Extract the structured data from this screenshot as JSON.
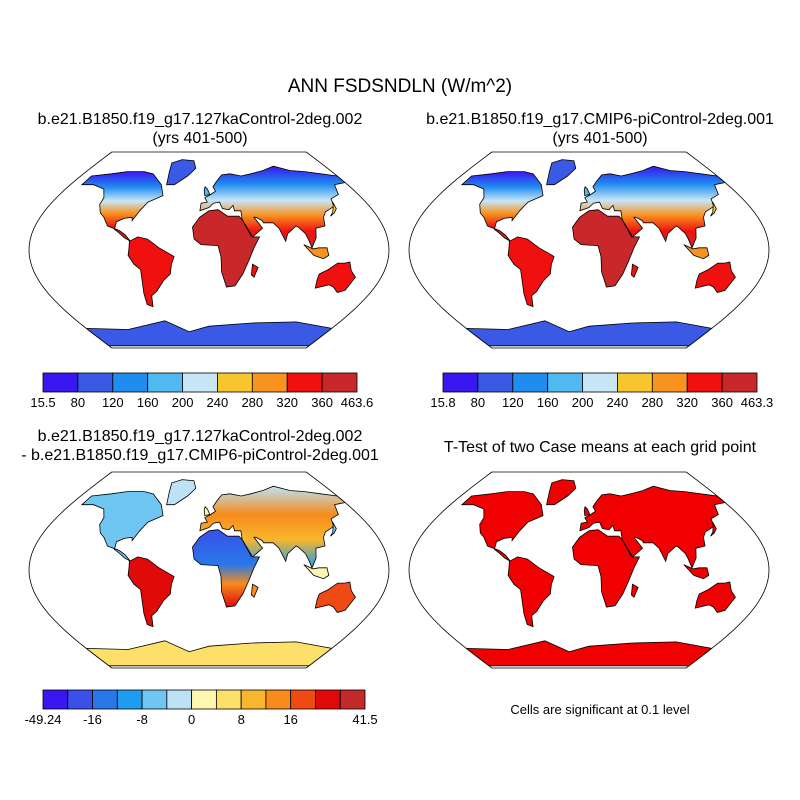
{
  "title": "ANN FSDSNDLN (W/m^2)",
  "panels": {
    "case1": {
      "line1": "b.e21.B1850.f19_g17.127kaControl-2deg.002",
      "line2": "(yrs 401-500)"
    },
    "case2": {
      "line1": "b.e21.B1850.f19_g17.CMIP6-piControl-2deg.001",
      "line2": "(yrs 401-500)"
    },
    "diff": {
      "line1": "b.e21.B1850.f19_g17.127kaControl-2deg.002",
      "line2": "- b.e21.B1850.f19_g17.CMIP6-piControl-2deg.001"
    },
    "ttest": {
      "title": "T-Test of two Case means at each grid point",
      "note": "Cells are significant at 0.1 level"
    }
  },
  "chart_data": [
    {
      "type": "heatmap",
      "name": "case1",
      "projection": "robinson",
      "colorbar": {
        "colors": [
          "#3a16f0",
          "#3a5ae6",
          "#1f8cf0",
          "#50b9ef",
          "#c7e6f7",
          "#f7c52c",
          "#f7931e",
          "#f01010",
          "#c8282a"
        ],
        "labels": [
          "15.5",
          "80",
          "120",
          "160",
          "200",
          "240",
          "280",
          "320",
          "360",
          "463.6"
        ]
      }
    },
    {
      "type": "heatmap",
      "name": "case2",
      "projection": "robinson",
      "colorbar": {
        "colors": [
          "#3a16f0",
          "#3a5ae6",
          "#1f8cf0",
          "#50b9ef",
          "#c7e6f7",
          "#f7c52c",
          "#f7931e",
          "#f01010",
          "#c8282a"
        ],
        "labels": [
          "15.8",
          "80",
          "120",
          "160",
          "200",
          "240",
          "280",
          "320",
          "360",
          "463.3"
        ]
      }
    },
    {
      "type": "heatmap",
      "name": "difference",
      "projection": "robinson",
      "colorbar": {
        "colors": [
          "#3a16f0",
          "#3a50e8",
          "#2878e8",
          "#1e9cf0",
          "#6fc6f0",
          "#bde2f5",
          "#fdf7b0",
          "#fce06a",
          "#f9b62c",
          "#f78b1c",
          "#ef4a14",
          "#e00a0a",
          "#c42a2a"
        ],
        "labels": [
          "-49.24",
          "",
          "-16",
          "",
          "-8",
          "",
          "0",
          "",
          "8",
          "",
          "16",
          "",
          "",
          "41.5"
        ]
      }
    },
    {
      "type": "heatmap",
      "name": "t-test",
      "projection": "robinson",
      "significance_color": "#f00000"
    }
  ]
}
